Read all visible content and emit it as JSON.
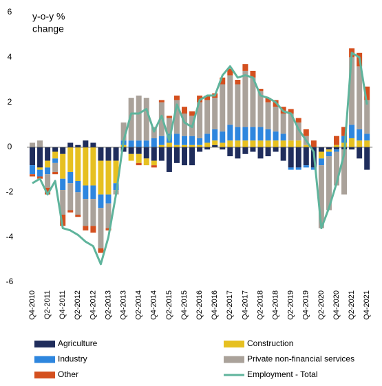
{
  "chart_data": {
    "type": "stacked-bar-line",
    "y_label": [
      "y-o-y %",
      "change"
    ],
    "categories": [
      "Q4-2010",
      null,
      "Q2-2011",
      null,
      "Q4-2011",
      null,
      "Q2-2012",
      null,
      "Q4-2012",
      null,
      "Q2-2013",
      null,
      "Q4-2013",
      null,
      "Q2-2014",
      null,
      "Q4-2014",
      null,
      "Q2-2015",
      null,
      "Q4-2015",
      null,
      "Q2-2016",
      null,
      "Q4-2016",
      null,
      "Q2-2017",
      null,
      "Q4-2017",
      null,
      "Q2-2018",
      null,
      "Q4-2018",
      null,
      "Q2-2019",
      null,
      "Q4-2019",
      null,
      "Q2-2020",
      null,
      "Q4-2020",
      null,
      "Q2-2021",
      null,
      "Q4-2021"
    ],
    "series": [
      {
        "name": "Agriculture",
        "color": "#1f2d5c",
        "values": [
          -0.8,
          -0.9,
          -0.6,
          -0.2,
          -0.3,
          0.2,
          0.1,
          0.3,
          0.2,
          -0.6,
          -0.6,
          -0.6,
          -0.2,
          -0.3,
          -0.3,
          -0.5,
          -0.6,
          -0.6,
          -1.1,
          -0.7,
          -0.8,
          -0.8,
          -0.2,
          -0.1,
          0.1,
          -0.1,
          -0.4,
          -0.5,
          -0.3,
          -0.2,
          -0.5,
          -0.4,
          -0.2,
          -0.6,
          -0.9,
          -0.9,
          -0.8,
          -0.9,
          -0.2,
          -0.1,
          -0.1,
          -0.1,
          -0.1,
          -0.5,
          -1.0
        ]
      },
      {
        "name": "Construction",
        "color": "#e6c021",
        "values": [
          0,
          -0.1,
          -0.3,
          -0.3,
          -1.1,
          -1.1,
          -1.5,
          -1.7,
          -1.7,
          -1.5,
          -1.5,
          -1.0,
          0.1,
          -0.3,
          -0.4,
          -0.3,
          -0.2,
          0.1,
          0.2,
          0.1,
          0.1,
          0.1,
          0.1,
          0.2,
          0.2,
          0.2,
          0.3,
          0.3,
          0.3,
          0.3,
          0.3,
          0.3,
          0.3,
          0.3,
          0.3,
          0.3,
          0.1,
          0,
          -0.3,
          -0.1,
          0.1,
          0.2,
          0.4,
          0.3,
          0.3
        ]
      },
      {
        "name": "Industry",
        "color": "#2e86de",
        "values": [
          -0.4,
          -0.3,
          -0.3,
          -0.2,
          -0.5,
          -0.5,
          -0.5,
          -0.6,
          -0.6,
          -0.6,
          -0.4,
          -0.3,
          0.2,
          0.3,
          0.3,
          0.3,
          0.4,
          0.4,
          0.4,
          0.5,
          0.4,
          0.4,
          0.3,
          0.4,
          0.5,
          0.5,
          0.7,
          0.6,
          0.6,
          0.6,
          0.6,
          0.5,
          0.4,
          0.3,
          -0.1,
          -0.1,
          -0.1,
          -0.1,
          -0.3,
          -0.2,
          -0.1,
          0.3,
          0.6,
          0.5,
          0.3
        ]
      },
      {
        "name": "Private non-financial services",
        "color": "#aaa29a",
        "values": [
          0.2,
          0.3,
          -0.6,
          -0.4,
          -1.1,
          -1.2,
          -1.0,
          -1.2,
          -1.2,
          -1.8,
          -1.1,
          -0.2,
          0.8,
          1.9,
          2.0,
          1.9,
          0.5,
          1.5,
          0.7,
          1.5,
          1.0,
          0.9,
          1.6,
          1.5,
          1.4,
          2.1,
          2.2,
          1.9,
          2.5,
          2.2,
          1.6,
          1.2,
          1.1,
          0.9,
          1.2,
          0.8,
          0.4,
          0,
          -2.8,
          -2.4,
          -1.5,
          -2.0,
          3.0,
          2.8,
          1.5
        ]
      },
      {
        "name": "Other",
        "color": "#d4501f",
        "values": [
          -0.1,
          -0.1,
          -0.3,
          -0.1,
          -0.5,
          -0.1,
          -0.1,
          -0.2,
          -0.3,
          -0.2,
          -0.1,
          0,
          0,
          0,
          -0.1,
          0,
          -0.1,
          0.1,
          0.1,
          0.2,
          0.3,
          0.2,
          0.3,
          0.2,
          0.2,
          0.3,
          0.3,
          0.2,
          0.3,
          0.3,
          0.1,
          0.2,
          0.3,
          0.3,
          0.2,
          0.2,
          0.3,
          0.3,
          0,
          0,
          0.4,
          0.4,
          0.4,
          0.6,
          0.6
        ]
      }
    ],
    "line": {
      "name": "Employment - Total",
      "color": "#5fb49c",
      "values": [
        -1.6,
        -1.4,
        -2.1,
        -1.5,
        -3.6,
        -3.7,
        -3.9,
        -4.2,
        -4.4,
        -5.2,
        -4.0,
        -2.1,
        0.3,
        1.5,
        1.5,
        1.7,
        0.7,
        1.4,
        0.3,
        1.9,
        1.1,
        0.9,
        2.1,
        2.3,
        2.3,
        3.2,
        3.6,
        3.1,
        3.2,
        3.1,
        2.3,
        2.2,
        2.0,
        1.6,
        1.5,
        0.8,
        0.3,
        -0.2,
        -3.6,
        -2.7,
        -1.6,
        -0.3,
        4.2,
        4.0,
        1.9
      ]
    },
    "ylim": [
      -6,
      6
    ],
    "yticks": [
      -6,
      -4,
      -2,
      0,
      2,
      4,
      6
    ]
  }
}
